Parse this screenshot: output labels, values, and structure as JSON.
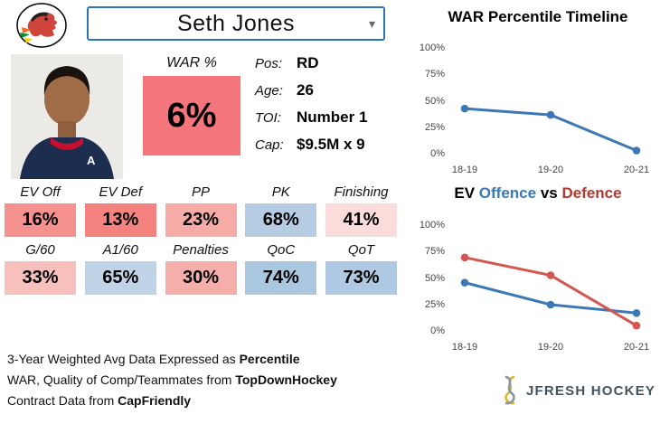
{
  "header": {
    "player_name": "Seth Jones",
    "caret": "▾"
  },
  "war": {
    "label": "WAR %",
    "value": "6%",
    "color": "#f4767c"
  },
  "bio": {
    "fields": [
      {
        "label": "Pos:",
        "value": "RD"
      },
      {
        "label": "Age:",
        "value": "26"
      },
      {
        "label": "TOI:",
        "value": "Number 1"
      },
      {
        "label": "Cap:",
        "value": "$9.5M x 9"
      }
    ]
  },
  "stats": {
    "row1": [
      {
        "label": "EV Off",
        "value": "16%",
        "color": "#f5918e"
      },
      {
        "label": "EV Def",
        "value": "13%",
        "color": "#f4827f"
      },
      {
        "label": "PP",
        "value": "23%",
        "color": "#f6aba7"
      },
      {
        "label": "PK",
        "value": "68%",
        "color": "#b6cce3"
      },
      {
        "label": "Finishing",
        "value": "41%",
        "color": "#fadcda"
      }
    ],
    "row2": [
      {
        "label": "G/60",
        "value": "33%",
        "color": "#f8c0bc"
      },
      {
        "label": "A1/60",
        "value": "65%",
        "color": "#c0d3e6"
      },
      {
        "label": "Penalties",
        "value": "30%",
        "color": "#f6aeaa"
      },
      {
        "label": "QoC",
        "value": "74%",
        "color": "#aac7e0"
      },
      {
        "label": "QoT",
        "value": "73%",
        "color": "#aec9e1"
      }
    ]
  },
  "footnotes": [
    {
      "pre": "3-Year Weighted Avg Data Expressed as ",
      "bold": "Percentile"
    },
    {
      "pre": "WAR, Quality of Comp/Teammates from ",
      "bold": "TopDownHockey"
    },
    {
      "pre": "Contract Data from ",
      "bold": "CapFriendly"
    }
  ],
  "charts": {
    "war_title": "WAR Percentile Timeline",
    "ev_title": {
      "ev": "EV ",
      "offence": "Offence",
      "vs": " vs ",
      "defence": "Defence",
      "offence_color": "#3b78b5",
      "defence_color": "#b03a30"
    }
  },
  "chart_data": [
    {
      "type": "line",
      "title": "WAR Percentile Timeline",
      "x": [
        "18-19",
        "19-20",
        "20-21"
      ],
      "series": [
        {
          "name": "WAR Percentile",
          "values": [
            43,
            37,
            3
          ],
          "color": "#3b78b5"
        }
      ],
      "ylim": [
        0,
        100
      ],
      "yticks": [
        "0%",
        "25%",
        "50%",
        "75%",
        "100%"
      ],
      "grid": false,
      "legend": "none"
    },
    {
      "type": "line",
      "title": "EV Offence vs Defence",
      "x": [
        "18-19",
        "19-20",
        "20-21"
      ],
      "series": [
        {
          "name": "Offence",
          "values": [
            46,
            25,
            17
          ],
          "color": "#3b78b5"
        },
        {
          "name": "Defence",
          "values": [
            70,
            53,
            5
          ],
          "color": "#d4574f"
        }
      ],
      "ylim": [
        0,
        100
      ],
      "yticks": [
        "0%",
        "25%",
        "50%",
        "75%",
        "100%"
      ],
      "grid": false,
      "legend": "in-title"
    }
  ],
  "branding": {
    "text": "JFRESH HOCKEY"
  }
}
